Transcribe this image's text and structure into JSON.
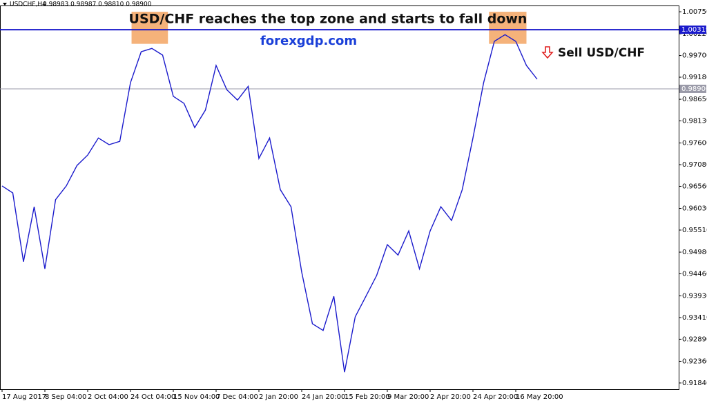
{
  "chart_data": {
    "type": "line",
    "header": {
      "symbol": "USDCHF,H4",
      "ohlc": "0.98983 0.98987 0.98810 0.98900"
    },
    "title": "USD/CHF reaches the top zone and starts to fall down",
    "annotations": {
      "site": "forexgdp.com",
      "signal": "Sell USD/CHF"
    },
    "categories": [
      "17 Aug 2017",
      null,
      null,
      null,
      "8 Sep 04:00",
      null,
      null,
      null,
      "2 Oct 04:00",
      null,
      null,
      null,
      "24 Oct 04:00",
      null,
      null,
      null,
      "15 Nov 04:00",
      null,
      null,
      null,
      "7 Dec 04:00",
      null,
      null,
      null,
      "2 Jan 20:00",
      null,
      null,
      null,
      "24 Jan 20:00",
      null,
      null,
      null,
      "15 Feb 20:00",
      null,
      null,
      null,
      "9 Mar 20:00",
      null,
      null,
      null,
      "2 Apr 20:00",
      null,
      null,
      null,
      "24 Apr 20:00",
      null,
      null,
      null,
      "16 May 20:00",
      null,
      null,
      null,
      null,
      null,
      null,
      null,
      null,
      null,
      null,
      null,
      null,
      null,
      null,
      null
    ],
    "values": [
      0.9657,
      0.964,
      0.9475,
      0.9607,
      0.9458,
      0.9624,
      0.9657,
      0.9706,
      0.9731,
      0.9772,
      0.9756,
      0.9764,
      0.9905,
      0.9979,
      0.9987,
      0.9971,
      0.9872,
      0.9855,
      0.9797,
      0.9839,
      0.9946,
      0.9888,
      0.9863,
      0.9896,
      0.9723,
      0.9772,
      0.9648,
      0.9607,
      0.945,
      0.9326,
      0.931,
      0.9392,
      0.921,
      0.9343,
      0.9392,
      0.9442,
      0.9516,
      0.9491,
      0.9549,
      0.9458,
      0.9549,
      0.9607,
      0.9574,
      0.9648,
      0.9772,
      0.9905,
      1.0004,
      1.002,
      1.0004,
      0.9946,
      0.9913,
      null,
      null,
      null,
      null,
      null,
      null,
      null,
      null,
      null,
      null,
      null,
      null,
      null
    ],
    "color": "#1a1acc",
    "ylim": [
      0.9169,
      1.009
    ],
    "yticks": [
      {
        "value": 1.0075,
        "label": "1.00750"
      },
      {
        "value": 1.0022,
        "label": "1.00220"
      },
      {
        "value": 0.997,
        "label": "0.99700"
      },
      {
        "value": 0.9918,
        "label": "0.99180"
      },
      {
        "value": 0.9865,
        "label": "0.98650"
      },
      {
        "value": 0.9813,
        "label": "0.98130"
      },
      {
        "value": 0.976,
        "label": "0.97600"
      },
      {
        "value": 0.9708,
        "label": "0.97080"
      },
      {
        "value": 0.9656,
        "label": "0.96560"
      },
      {
        "value": 0.9603,
        "label": "0.96030"
      },
      {
        "value": 0.9551,
        "label": "0.95510"
      },
      {
        "value": 0.9498,
        "label": "0.94980"
      },
      {
        "value": 0.9446,
        "label": "0.94460"
      },
      {
        "value": 0.9393,
        "label": "0.93930"
      },
      {
        "value": 0.9341,
        "label": "0.93410"
      },
      {
        "value": 0.9289,
        "label": "0.92890"
      },
      {
        "value": 0.9236,
        "label": "0.92360"
      },
      {
        "value": 0.9184,
        "label": "0.91840"
      }
    ],
    "hlines": [
      {
        "value": 1.00319,
        "color": "#1a1acc"
      },
      {
        "value": 0.989,
        "label": "0.98900",
        "color": "#9a9aa8"
      }
    ],
    "zones": [
      {
        "x": [
          12.1,
          15.5
        ],
        "y": [
          0.9998,
          1.0075
        ],
        "color": "#f5b27a"
      },
      {
        "x": [
          45.5,
          49.0
        ],
        "y": [
          0.9998,
          1.0075
        ],
        "color": "#f5b27a"
      }
    ]
  }
}
